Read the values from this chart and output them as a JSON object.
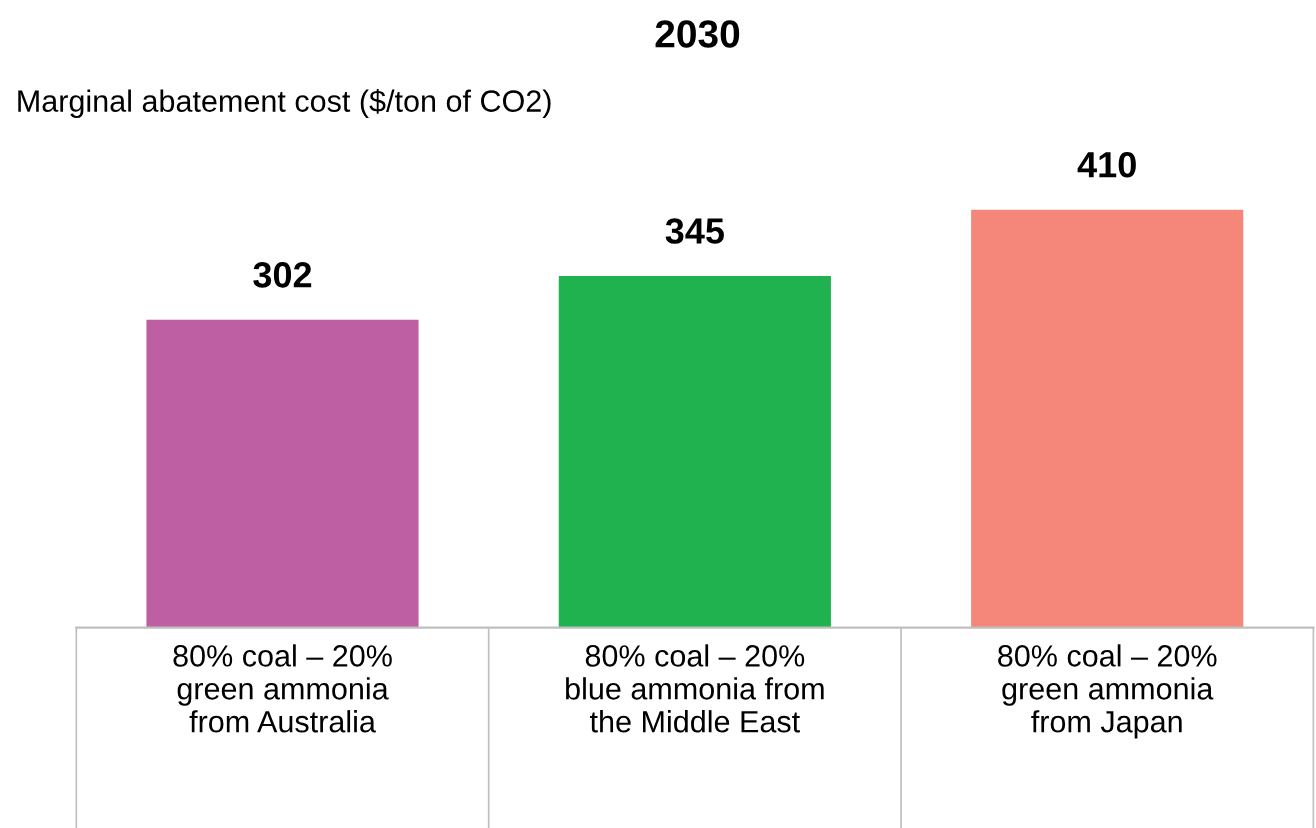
{
  "chart_data": {
    "type": "bar",
    "title": "2030",
    "ylabel": "Marginal abatement cost ($/ton of CO2)",
    "categories": [
      "80% coal – 20%\ngreen ammonia\nfrom Australia",
      "80% coal – 20%\nblue ammonia from\nthe Middle East",
      "80% coal – 20%\ngreen ammonia\nfrom Japan"
    ],
    "values": [
      302,
      345,
      410
    ],
    "colors": [
      "#bf5fa3",
      "#1fb24f",
      "#f4867a"
    ],
    "data_labels": true,
    "grid": false,
    "legend": false
  }
}
